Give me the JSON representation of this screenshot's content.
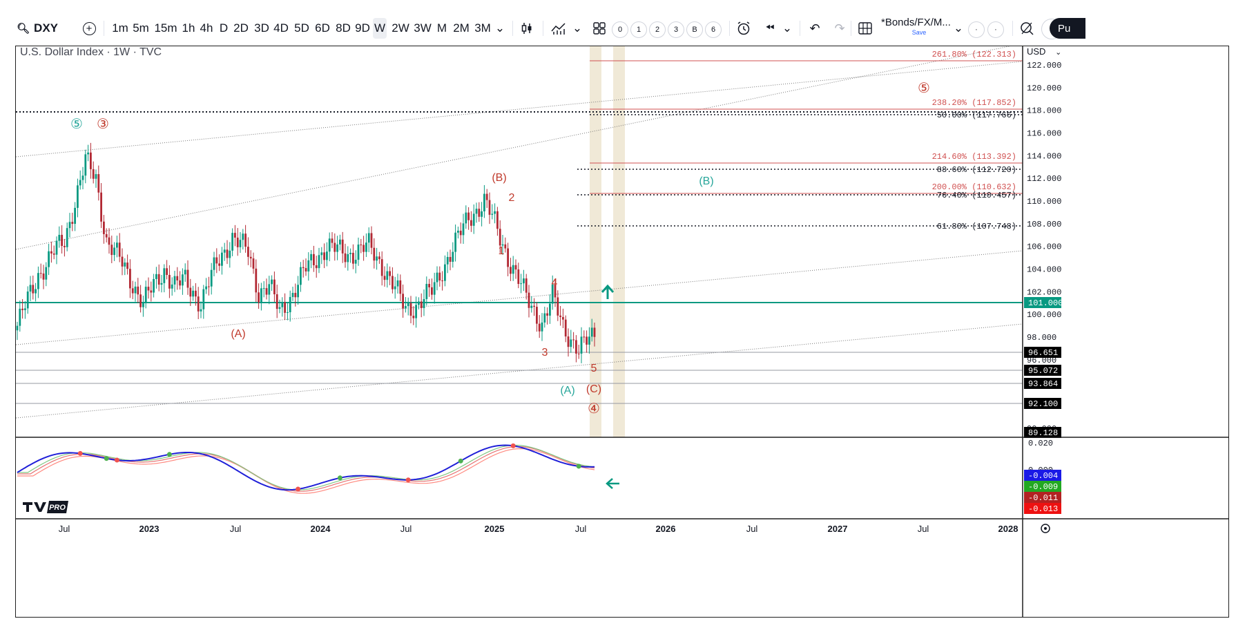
{
  "toolbar": {
    "symbol": "DXY",
    "intervals": [
      "1m",
      "5m",
      "15m",
      "1h",
      "4h",
      "D",
      "2D",
      "3D",
      "4D",
      "5D",
      "6D",
      "8D",
      "9D",
      "W",
      "2W",
      "3W",
      "M",
      "2M",
      "3M"
    ],
    "selected_interval": "W",
    "layout_counts": [
      "0",
      "1",
      "2",
      "3",
      "B",
      "6"
    ],
    "layout_name": "*Bonds/FX/M...",
    "save_label": "Save",
    "publish_label": "Pu",
    "icons": [
      "search-icon",
      "add-symbol-icon",
      "chevron-down-icon",
      "candles-icon",
      "indicators-icon",
      "layouts-icon",
      "alert-icon",
      "replay-icon",
      "undo-icon",
      "redo-icon",
      "grid-icon",
      "settings-icon"
    ]
  },
  "chart": {
    "title": "U.S. Dollar Index · 1W · TVC",
    "currency": "USD",
    "price_axis_ticks": [
      "122.000",
      "120.000",
      "118.000",
      "116.000",
      "114.000",
      "112.000",
      "110.000",
      "108.000",
      "106.000",
      "104.000",
      "102.000",
      "100.000",
      "98.000",
      "96.000",
      "90.000"
    ],
    "price_badges": [
      {
        "label": "101.000",
        "color": "#089981"
      },
      {
        "label": "96.651",
        "color": "#000000"
      },
      {
        "label": "95.072",
        "color": "#000000"
      },
      {
        "label": "93.864",
        "color": "#000000"
      },
      {
        "label": "92.100",
        "color": "#000000"
      },
      {
        "label": "89.128",
        "color": "#000000"
      }
    ],
    "fib_labels": [
      {
        "text": "261.80% (122.313)",
        "color": "#d05050"
      },
      {
        "text": "238.20% (117.852)",
        "color": "#d05050"
      },
      {
        "text": "50.00% (117.766)",
        "color": "#131722"
      },
      {
        "text": "214.60% (113.392)",
        "color": "#d05050"
      },
      {
        "text": "88.60% (112.720)",
        "color": "#131722"
      },
      {
        "text": "200.00% (110.632)",
        "color": "#d05050"
      },
      {
        "text": "76.40% (110.457)",
        "color": "#131722"
      },
      {
        "text": "61.80% (107.748)",
        "color": "#131722"
      }
    ],
    "wave_labels": {
      "green_5": "⑤",
      "red_3": "③",
      "red_A": "(A)",
      "red_B": "(B)",
      "w1": "1",
      "w2": "2",
      "w3": "3",
      "w4": "4",
      "w5": "5",
      "green_A": "(A)",
      "red_C": "(C)",
      "red_4": "④",
      "green_B": "(B)",
      "red_5": "⑤"
    },
    "time_axis": [
      "Jul",
      "2023",
      "Jul",
      "2024",
      "Jul",
      "2025",
      "Jul",
      "2026",
      "Jul",
      "2027",
      "Jul",
      "2028"
    ],
    "oscillator": {
      "ticks": [
        "0.020",
        "0.000"
      ],
      "badges": [
        {
          "label": "-0.004",
          "color": "#1a1ae6"
        },
        {
          "label": "-0.009",
          "color": "#22a822"
        },
        {
          "label": "-0.011",
          "color": "#b22222"
        },
        {
          "label": "-0.013",
          "color": "#ee1111"
        }
      ]
    },
    "watermark": "PRO",
    "colors": {
      "up": "#089981",
      "down": "#b22833",
      "support": "#089981",
      "fib_red": "#d05050",
      "osc_blue": "#1f1fd8"
    }
  }
}
